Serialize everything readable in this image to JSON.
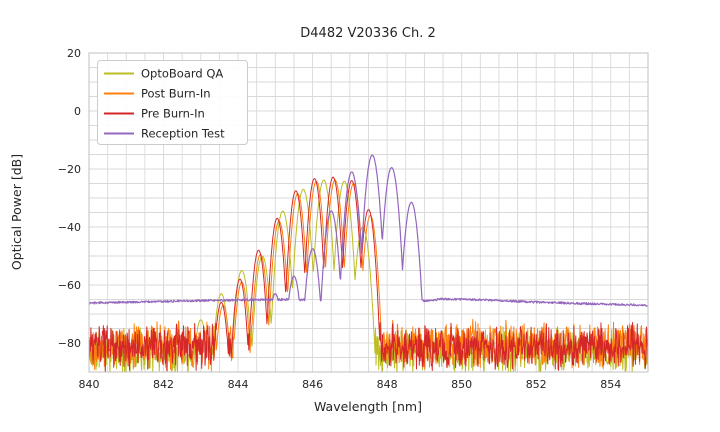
{
  "chart_data": {
    "type": "line",
    "title": "D4482 V20336 Ch. 2",
    "xlabel": "Wavelength [nm]",
    "ylabel": "Optical Power [dB]",
    "xlim": [
      840,
      855
    ],
    "ylim": [
      -90,
      20
    ],
    "xticks": {
      "values": [
        840,
        842,
        844,
        846,
        848,
        850,
        852,
        854
      ],
      "labels": [
        "840",
        "842",
        "844",
        "846",
        "848",
        "850",
        "852",
        "854"
      ]
    },
    "yticks": {
      "values": [
        20,
        0,
        -20,
        -40,
        -60,
        -80
      ],
      "labels": [
        "20",
        "0",
        "−20",
        "−40",
        "−60",
        "−80"
      ]
    },
    "grid": {
      "x_minor_step_nm": 0.5,
      "y_minor_step_db": 5,
      "color": "#d9d9d9",
      "border_color": "#c2c2c2",
      "grid_on": true
    },
    "legend": {
      "position": "upper-left",
      "background": "#ffffff",
      "border_color": "#cccccc"
    },
    "text_color": "#262626",
    "background_color": "#ffffff",
    "series": [
      {
        "name": "OptoBoard QA",
        "color": "#bcbd22",
        "kind": "laser-spectrum",
        "modes_nm_db": [
          [
            843.0,
            -72
          ],
          [
            843.55,
            -63
          ],
          [
            844.1,
            -55
          ],
          [
            844.65,
            -50
          ],
          [
            845.2,
            -34.5
          ],
          [
            845.75,
            -27
          ],
          [
            846.3,
            -23.8
          ],
          [
            846.85,
            -24.2
          ],
          [
            847.35,
            -40
          ]
        ],
        "mode_width_nm": 0.27,
        "valley_depth_db": 30,
        "noise_floor": {
          "center_db": -83,
          "spread_db": 9,
          "seed": 11
        }
      },
      {
        "name": "Post Burn-In",
        "color": "#ff7f0e",
        "kind": "laser-spectrum",
        "modes_nm_db": [
          [
            843.6,
            -67
          ],
          [
            844.1,
            -59
          ],
          [
            844.6,
            -49.5
          ],
          [
            845.1,
            -38
          ],
          [
            845.6,
            -28.5
          ],
          [
            846.1,
            -24.3
          ],
          [
            846.6,
            -23.8
          ],
          [
            847.1,
            -25
          ],
          [
            847.55,
            -36
          ]
        ],
        "mode_width_nm": 0.25,
        "valley_depth_db": 30,
        "noise_floor": {
          "center_db": -80.5,
          "spread_db": 9,
          "seed": 22
        }
      },
      {
        "name": "Pre Burn-In",
        "color": "#d62728",
        "kind": "laser-spectrum",
        "modes_nm_db": [
          [
            843.55,
            -66
          ],
          [
            844.05,
            -58
          ],
          [
            844.55,
            -48
          ],
          [
            845.05,
            -37
          ],
          [
            845.55,
            -27.5
          ],
          [
            846.05,
            -23.3
          ],
          [
            846.55,
            -22.8
          ],
          [
            847.05,
            -24
          ],
          [
            847.5,
            -34
          ]
        ],
        "mode_width_nm": 0.245,
        "valley_depth_db": 30,
        "noise_floor": {
          "center_db": -81.5,
          "spread_db": 9,
          "seed": 33
        }
      },
      {
        "name": "Reception Test",
        "color": "#9467bd",
        "kind": "laser-spectrum-with-baseline",
        "modes_nm_db": [
          [
            845.0,
            -63
          ],
          [
            845.5,
            -57
          ],
          [
            846.0,
            -47.5
          ],
          [
            846.5,
            -34.5
          ],
          [
            847.05,
            -21
          ],
          [
            847.6,
            -15.2
          ],
          [
            848.12,
            -19.5
          ],
          [
            848.65,
            -31.5
          ]
        ],
        "mode_width_nm": 0.27,
        "valley_depth_db": 30,
        "baseline_nm_db": [
          [
            840,
            -66.2
          ],
          [
            841.5,
            -65.8
          ],
          [
            843,
            -65.4
          ],
          [
            844.5,
            -65.1
          ],
          [
            845.3,
            -65.0
          ],
          [
            848.95,
            -65.5
          ],
          [
            849.5,
            -64.8
          ],
          [
            850.5,
            -65.1
          ],
          [
            852,
            -65.9
          ],
          [
            853.5,
            -66.5
          ],
          [
            855,
            -67.0
          ]
        ],
        "ripple_db": 0.7,
        "seed": 44
      }
    ]
  }
}
